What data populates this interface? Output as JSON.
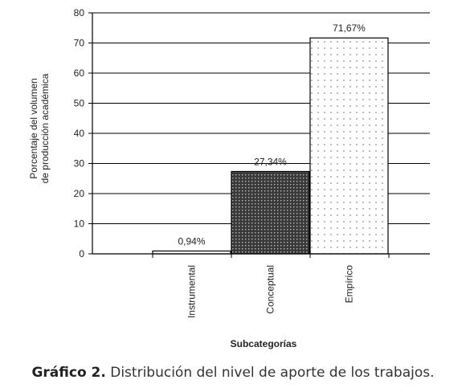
{
  "chart_data": {
    "type": "bar",
    "categories": [
      "Instrumental",
      "Conceptual",
      "Empírico"
    ],
    "values": [
      0.94,
      27.34,
      71.67
    ],
    "data_labels": [
      "0,94%",
      "27,34%",
      "71,67%"
    ],
    "ylabel_lines": [
      "Porcentaje del volumen",
      "de producción académica"
    ],
    "xlabel": "Subcategorías",
    "ylim": [
      0,
      80
    ],
    "yticks": [
      0,
      10,
      20,
      30,
      40,
      50,
      60,
      70,
      80
    ],
    "grid": true,
    "legend": "none",
    "colors": {
      "bar_fill": [
        "#ffffff",
        "#444444",
        "#ffffff"
      ],
      "bar_pattern": [
        "none",
        "dense-dots",
        "sparse-dots"
      ],
      "stroke": "#000000",
      "grid": "#000000"
    }
  },
  "caption": {
    "label": "Gráfico 2.",
    "text": " Distribución del nivel de aporte de los trabajos."
  }
}
